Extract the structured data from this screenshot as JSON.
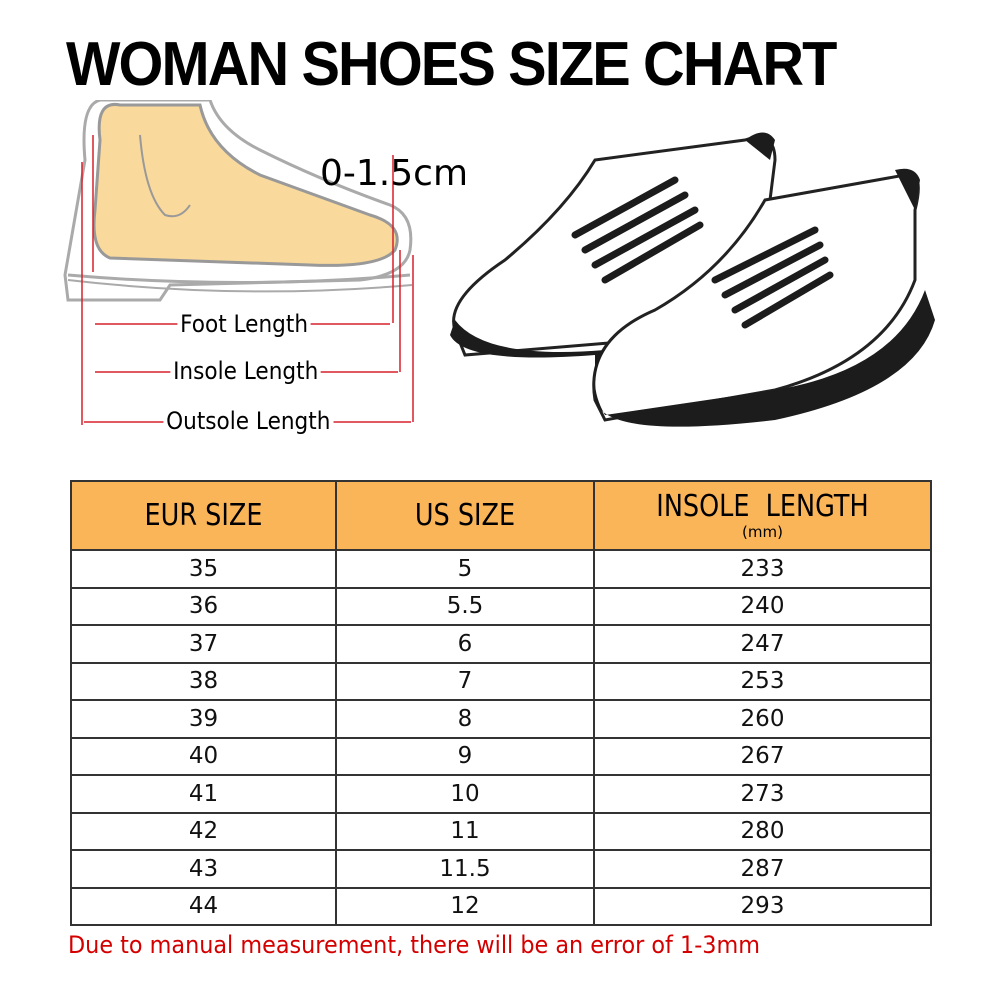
{
  "title": "WOMAN SHOES SIZE CHART",
  "diagram": {
    "gap_label": "0-1.5cm",
    "foot_length": "Foot Length",
    "insole_length": "Insole Length",
    "outsole_length": "Outsole Length"
  },
  "table": {
    "headers": [
      "EUR SIZE",
      "US SIZE",
      "INSOLE  LENGTH"
    ],
    "header_unit": "(mm)",
    "rows": [
      [
        "35",
        "5",
        "233"
      ],
      [
        "36",
        "5.5",
        "240"
      ],
      [
        "37",
        "6",
        "247"
      ],
      [
        "38",
        "7",
        "253"
      ],
      [
        "39",
        "8",
        "260"
      ],
      [
        "40",
        "9",
        "267"
      ],
      [
        "41",
        "10",
        "273"
      ],
      [
        "42",
        "11",
        "280"
      ],
      [
        "43",
        "11.5",
        "287"
      ],
      [
        "44",
        "12",
        "293"
      ]
    ],
    "header_color": "#fbb559"
  },
  "note": "Due to manual measurement, there will be an error of 1-3mm",
  "colors": {
    "note": "#d40000",
    "measure_lines": "#d9212b"
  }
}
